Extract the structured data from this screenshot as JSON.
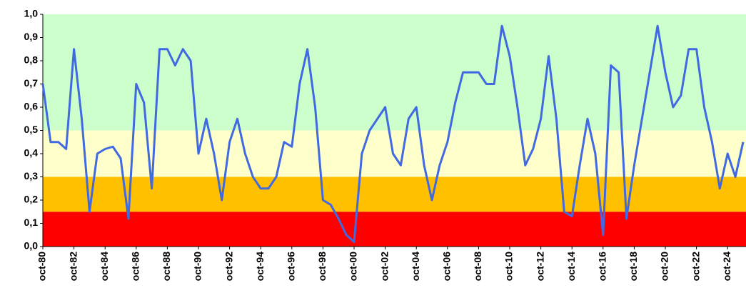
{
  "chart_data": {
    "type": "line",
    "categories": [
      "oct-80",
      null,
      null,
      null,
      "oct-82",
      null,
      null,
      null,
      "oct-84",
      null,
      null,
      null,
      "oct-86",
      null,
      null,
      null,
      "oct-88",
      null,
      null,
      null,
      "oct-90",
      null,
      null,
      null,
      "oct-92",
      null,
      null,
      null,
      "oct-94",
      null,
      null,
      null,
      "oct-96",
      null,
      null,
      null,
      "oct-98",
      null,
      null,
      null,
      "oct-00",
      null,
      null,
      null,
      "oct-02",
      null,
      null,
      null,
      "oct-04",
      null,
      null,
      null,
      "oct-06",
      null,
      null,
      null,
      "oct-08",
      null,
      null,
      null,
      "oct-10",
      null,
      null,
      null,
      "oct-12",
      null,
      null,
      null,
      "oct-14",
      null,
      null,
      null,
      "oct-16",
      null,
      null,
      null,
      "oct-18",
      null,
      null,
      null,
      "oct-20",
      null,
      null,
      null,
      "oct-22",
      null,
      null,
      null,
      "oct-24",
      null,
      null
    ],
    "series": [
      {
        "color": "#4169e1",
        "values": [
          0.7,
          0.45,
          0.45,
          0.42,
          0.85,
          0.55,
          0.15,
          0.4,
          0.42,
          0.43,
          0.38,
          0.12,
          0.7,
          0.62,
          0.25,
          0.85,
          0.85,
          0.78,
          0.85,
          0.8,
          0.4,
          0.55,
          0.4,
          0.2,
          0.45,
          0.55,
          0.4,
          0.3,
          0.25,
          0.25,
          0.3,
          0.45,
          0.43,
          0.7,
          0.85,
          0.6,
          0.2,
          0.18,
          0.12,
          0.05,
          0.02,
          0.4,
          0.5,
          0.55,
          0.6,
          0.4,
          0.35,
          0.55,
          0.6,
          0.35,
          0.2,
          0.35,
          0.45,
          0.62,
          0.75,
          0.75,
          0.75,
          0.7,
          0.7,
          0.95,
          0.82,
          0.6,
          0.35,
          0.42,
          0.55,
          0.82,
          0.55,
          0.15,
          0.13,
          0.35,
          0.55,
          0.4,
          0.05,
          0.78,
          0.75,
          0.12,
          0.35,
          0.55,
          0.75,
          0.95,
          0.75,
          0.6,
          0.65,
          0.85,
          0.85,
          0.6,
          0.45,
          0.25,
          0.4,
          0.3,
          0.45
        ]
      }
    ],
    "bands": [
      {
        "from": 0,
        "to": 0.15,
        "color": "#ff0000"
      },
      {
        "from": 0.15,
        "to": 0.3,
        "color": "#ffc000"
      },
      {
        "from": 0.3,
        "to": 0.5,
        "color": "#ffffcc"
      },
      {
        "from": 0.5,
        "to": 1,
        "color": "#ccffcc"
      }
    ],
    "ylim": [
      0,
      1
    ],
    "yticks": [
      {
        "value": 0,
        "label": "0,0"
      },
      {
        "value": 0.1,
        "label": "0,1"
      },
      {
        "value": 0.2,
        "label": "0,2"
      },
      {
        "value": 0.3,
        "label": "0,3"
      },
      {
        "value": 0.4,
        "label": "0,4"
      },
      {
        "value": 0.5,
        "label": "0,5"
      },
      {
        "value": 0.6,
        "label": "0,6"
      },
      {
        "value": 0.7,
        "label": "0,7"
      },
      {
        "value": 0.8,
        "label": "0,8"
      },
      {
        "value": 0.9,
        "label": "0,9"
      },
      {
        "value": 1,
        "label": "1,0"
      }
    ]
  }
}
